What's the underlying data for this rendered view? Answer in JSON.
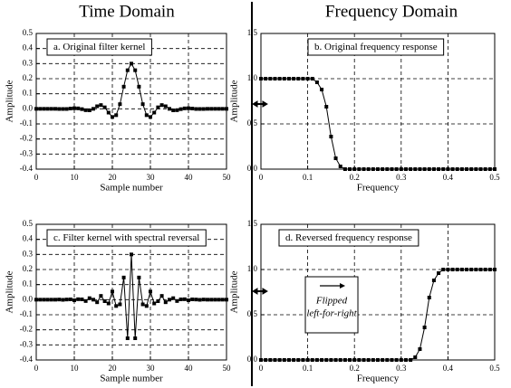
{
  "headers": {
    "left": "Time Domain",
    "right": "Frequency Domain"
  },
  "chart_data": [
    {
      "type": "line",
      "title": "a.  Original filter kernel",
      "xlabel": "Sample number",
      "ylabel": "Amplitude",
      "x": [
        0,
        1,
        2,
        3,
        4,
        5,
        6,
        7,
        8,
        9,
        10,
        11,
        12,
        13,
        14,
        15,
        16,
        17,
        18,
        19,
        20,
        21,
        22,
        23,
        24,
        25,
        26,
        27,
        28,
        29,
        30,
        31,
        32,
        33,
        34,
        35,
        36,
        37,
        38,
        39,
        40,
        41,
        42,
        43,
        44,
        45,
        46,
        47,
        48,
        49,
        50
      ],
      "values": [
        0,
        0,
        0,
        0,
        0,
        0,
        -0.001,
        -0.001,
        -0.001,
        0.002,
        0.004,
        0.003,
        -0.002,
        -0.009,
        -0.01,
        0,
        0.017,
        0.025,
        0.01,
        -0.025,
        -0.054,
        -0.042,
        0.031,
        0.147,
        0.256,
        0.3,
        0.256,
        0.147,
        0.031,
        -0.042,
        -0.054,
        -0.025,
        0.01,
        0.025,
        0.017,
        0,
        -0.01,
        -0.009,
        -0.002,
        0.003,
        0.004,
        0.002,
        -0.001,
        -0.001,
        -0.001,
        0,
        0,
        0,
        0,
        0,
        0
      ],
      "color": "#000000",
      "xlim": [
        0,
        50
      ],
      "ylim": [
        -0.4,
        0.5
      ],
      "xticks": [
        0,
        10,
        20,
        30,
        40,
        50
      ],
      "yticks": [
        -0.4,
        -0.3,
        -0.2,
        -0.1,
        {
          "value": 0,
          "label": "0.0"
        },
        0.1,
        0.2,
        0.3,
        0.4,
        0.5
      ],
      "grid": true
    },
    {
      "type": "line",
      "title": "b.  Original frequency response",
      "xlabel": "Frequency",
      "ylabel": "Amplitude",
      "x": [
        0,
        0.01,
        0.02,
        0.03,
        0.04,
        0.05,
        0.06,
        0.07,
        0.08,
        0.09,
        0.1,
        0.11,
        0.12,
        0.13,
        0.14,
        0.15,
        0.16,
        0.17,
        0.18,
        0.19,
        0.2,
        0.21,
        0.22,
        0.23,
        0.24,
        0.25,
        0.26,
        0.27,
        0.28,
        0.29,
        0.3,
        0.31,
        0.32,
        0.33,
        0.34,
        0.35,
        0.36,
        0.37,
        0.38,
        0.39,
        0.4,
        0.41,
        0.42,
        0.43,
        0.44,
        0.45,
        0.46,
        0.47,
        0.48,
        0.49,
        0.5
      ],
      "values": [
        1,
        1,
        1,
        1,
        1,
        1,
        1,
        1,
        1,
        1,
        1,
        1,
        0.96,
        0.88,
        0.69,
        0.36,
        0.12,
        0.03,
        0,
        0,
        0,
        0,
        0,
        0,
        0,
        0,
        0,
        0,
        0,
        0,
        0,
        0,
        0,
        0,
        0,
        0,
        0,
        0,
        0,
        0,
        0,
        0,
        0,
        0,
        0,
        0,
        0,
        0,
        0,
        0,
        0
      ],
      "color": "#000000",
      "xlim": [
        0,
        0.5
      ],
      "ylim": [
        0,
        1.5
      ],
      "xticks": [
        0,
        0.1,
        0.2,
        0.3,
        0.4,
        0.5
      ],
      "yticks": [
        {
          "value": 0,
          "label": "0.0"
        },
        0.5,
        {
          "value": 1,
          "label": "1.0"
        },
        1.5
      ],
      "grid": true
    },
    {
      "type": "line",
      "title": "c.  Filter kernel with spectral reversal",
      "xlabel": "Sample number",
      "ylabel": "Amplitude",
      "x": [
        0,
        1,
        2,
        3,
        4,
        5,
        6,
        7,
        8,
        9,
        10,
        11,
        12,
        13,
        14,
        15,
        16,
        17,
        18,
        19,
        20,
        21,
        22,
        23,
        24,
        25,
        26,
        27,
        28,
        29,
        30,
        31,
        32,
        33,
        34,
        35,
        36,
        37,
        38,
        39,
        40,
        41,
        42,
        43,
        44,
        45,
        46,
        47,
        48,
        49,
        50
      ],
      "values": [
        0,
        0,
        0,
        0,
        0,
        0,
        0.001,
        -0.001,
        0.001,
        0.002,
        -0.004,
        0.003,
        0.002,
        -0.009,
        0.01,
        0,
        -0.017,
        0.025,
        -0.01,
        -0.025,
        0.054,
        -0.042,
        -0.031,
        0.147,
        -0.256,
        0.3,
        -0.256,
        0.147,
        -0.031,
        -0.042,
        0.054,
        -0.025,
        -0.01,
        0.025,
        -0.017,
        0,
        0.01,
        -0.009,
        0.002,
        0.003,
        -0.004,
        0.002,
        0.001,
        -0.001,
        0.001,
        0,
        0,
        0,
        0,
        0,
        0
      ],
      "color": "#000000",
      "xlim": [
        0,
        50
      ],
      "ylim": [
        -0.4,
        0.5
      ],
      "xticks": [
        0,
        10,
        20,
        30,
        40,
        50
      ],
      "yticks": [
        -0.4,
        -0.3,
        -0.2,
        -0.1,
        {
          "value": 0,
          "label": "0.0"
        },
        0.1,
        0.2,
        0.3,
        0.4,
        0.5
      ],
      "grid": true
    },
    {
      "type": "line",
      "title": "d.  Reversed frequency response",
      "xlabel": "Frequency",
      "ylabel": "Amplitude",
      "x": [
        0,
        0.01,
        0.02,
        0.03,
        0.04,
        0.05,
        0.06,
        0.07,
        0.08,
        0.09,
        0.1,
        0.11,
        0.12,
        0.13,
        0.14,
        0.15,
        0.16,
        0.17,
        0.18,
        0.19,
        0.2,
        0.21,
        0.22,
        0.23,
        0.24,
        0.25,
        0.26,
        0.27,
        0.28,
        0.29,
        0.3,
        0.31,
        0.32,
        0.33,
        0.34,
        0.35,
        0.36,
        0.37,
        0.38,
        0.39,
        0.4,
        0.41,
        0.42,
        0.43,
        0.44,
        0.45,
        0.46,
        0.47,
        0.48,
        0.49,
        0.5
      ],
      "values": [
        0,
        0,
        0,
        0,
        0,
        0,
        0,
        0,
        0,
        0,
        0,
        0,
        0,
        0,
        0,
        0,
        0,
        0,
        0,
        0,
        0,
        0,
        0,
        0,
        0,
        0,
        0,
        0,
        0,
        0,
        0,
        0,
        0,
        0.03,
        0.12,
        0.36,
        0.69,
        0.88,
        0.96,
        1,
        1,
        1,
        1,
        1,
        1,
        1,
        1,
        1,
        1,
        1,
        1
      ],
      "color": "#000000",
      "xlim": [
        0,
        0.5
      ],
      "ylim": [
        0,
        1.5
      ],
      "xticks": [
        0,
        0.1,
        0.2,
        0.3,
        0.4,
        0.5
      ],
      "yticks": [
        {
          "value": 0,
          "label": "0.0"
        },
        0.5,
        {
          "value": 1,
          "label": "1.0"
        },
        1.5
      ],
      "grid": true,
      "annotation": [
        "Flipped",
        "left-for-right"
      ]
    }
  ]
}
